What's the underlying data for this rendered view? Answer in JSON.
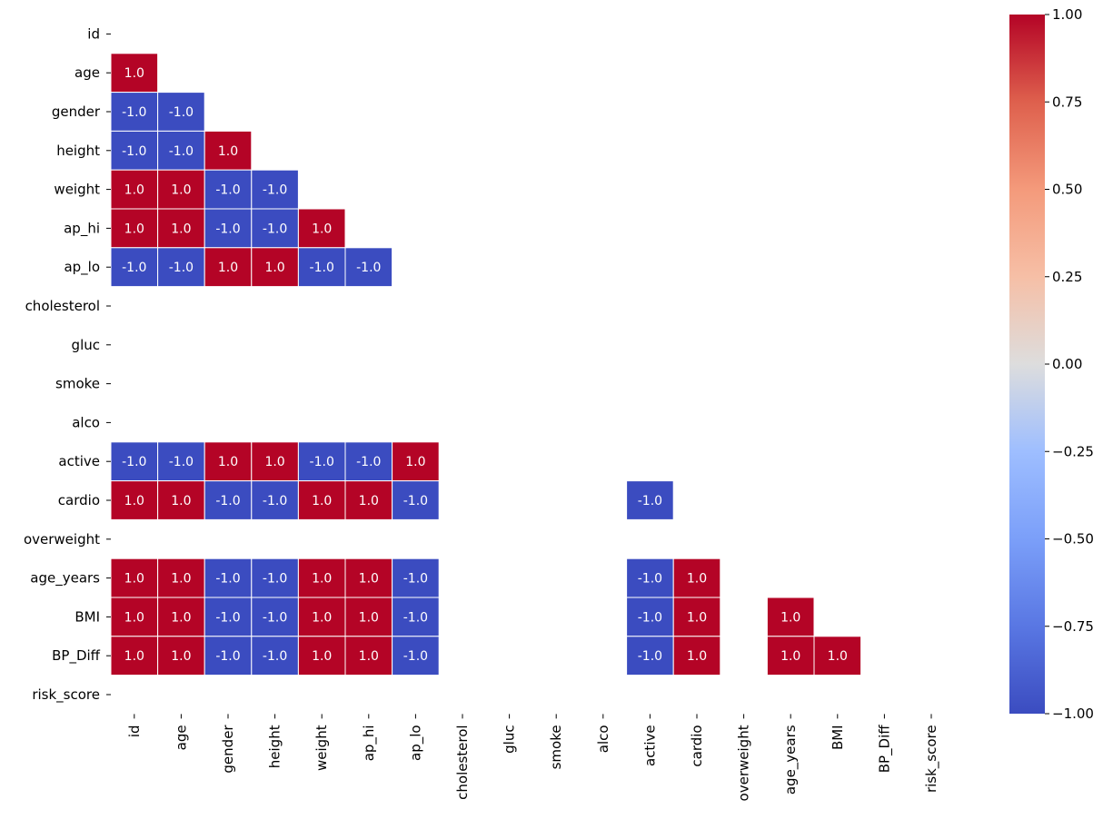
{
  "chart_data": {
    "type": "heatmap",
    "title": "",
    "xlabel": "",
    "ylabel": "",
    "colormap": "coolwarm",
    "colors": {
      "low": "#3b4cc0",
      "mid": "#dddddd",
      "high": "#b40426",
      "cell_border": "#ffffff"
    },
    "vmin": -1.0,
    "vmax": 1.0,
    "annotation_format": "0.1f",
    "mask": "upper triangle incl. diagonal, plus NaN cells",
    "labels": [
      "id",
      "age",
      "gender",
      "height",
      "weight",
      "ap_hi",
      "ap_lo",
      "cholesterol",
      "gluc",
      "smoke",
      "alco",
      "active",
      "cardio",
      "overweight",
      "age_years",
      "BMI",
      "BP_Diff",
      "risk_score"
    ],
    "values": [
      [
        null,
        null,
        null,
        null,
        null,
        null,
        null,
        null,
        null,
        null,
        null,
        null,
        null,
        null,
        null,
        null,
        null,
        null
      ],
      [
        1.0,
        null,
        null,
        null,
        null,
        null,
        null,
        null,
        null,
        null,
        null,
        null,
        null,
        null,
        null,
        null,
        null,
        null
      ],
      [
        -1.0,
        -1.0,
        null,
        null,
        null,
        null,
        null,
        null,
        null,
        null,
        null,
        null,
        null,
        null,
        null,
        null,
        null,
        null
      ],
      [
        -1.0,
        -1.0,
        1.0,
        null,
        null,
        null,
        null,
        null,
        null,
        null,
        null,
        null,
        null,
        null,
        null,
        null,
        null,
        null
      ],
      [
        1.0,
        1.0,
        -1.0,
        -1.0,
        null,
        null,
        null,
        null,
        null,
        null,
        null,
        null,
        null,
        null,
        null,
        null,
        null,
        null
      ],
      [
        1.0,
        1.0,
        -1.0,
        -1.0,
        1.0,
        null,
        null,
        null,
        null,
        null,
        null,
        null,
        null,
        null,
        null,
        null,
        null,
        null
      ],
      [
        -1.0,
        -1.0,
        1.0,
        1.0,
        -1.0,
        -1.0,
        null,
        null,
        null,
        null,
        null,
        null,
        null,
        null,
        null,
        null,
        null,
        null
      ],
      [
        null,
        null,
        null,
        null,
        null,
        null,
        null,
        null,
        null,
        null,
        null,
        null,
        null,
        null,
        null,
        null,
        null,
        null
      ],
      [
        null,
        null,
        null,
        null,
        null,
        null,
        null,
        null,
        null,
        null,
        null,
        null,
        null,
        null,
        null,
        null,
        null,
        null
      ],
      [
        null,
        null,
        null,
        null,
        null,
        null,
        null,
        null,
        null,
        null,
        null,
        null,
        null,
        null,
        null,
        null,
        null,
        null
      ],
      [
        null,
        null,
        null,
        null,
        null,
        null,
        null,
        null,
        null,
        null,
        null,
        null,
        null,
        null,
        null,
        null,
        null,
        null
      ],
      [
        -1.0,
        -1.0,
        1.0,
        1.0,
        -1.0,
        -1.0,
        1.0,
        null,
        null,
        null,
        null,
        null,
        null,
        null,
        null,
        null,
        null,
        null
      ],
      [
        1.0,
        1.0,
        -1.0,
        -1.0,
        1.0,
        1.0,
        -1.0,
        null,
        null,
        null,
        null,
        -1.0,
        null,
        null,
        null,
        null,
        null,
        null
      ],
      [
        null,
        null,
        null,
        null,
        null,
        null,
        null,
        null,
        null,
        null,
        null,
        null,
        null,
        null,
        null,
        null,
        null,
        null
      ],
      [
        1.0,
        1.0,
        -1.0,
        -1.0,
        1.0,
        1.0,
        -1.0,
        null,
        null,
        null,
        null,
        -1.0,
        1.0,
        null,
        null,
        null,
        null,
        null
      ],
      [
        1.0,
        1.0,
        -1.0,
        -1.0,
        1.0,
        1.0,
        -1.0,
        null,
        null,
        null,
        null,
        -1.0,
        1.0,
        null,
        1.0,
        null,
        null,
        null
      ],
      [
        1.0,
        1.0,
        -1.0,
        -1.0,
        1.0,
        1.0,
        -1.0,
        null,
        null,
        null,
        null,
        -1.0,
        1.0,
        null,
        1.0,
        1.0,
        null,
        null
      ],
      [
        null,
        null,
        null,
        null,
        null,
        null,
        null,
        null,
        null,
        null,
        null,
        null,
        null,
        null,
        null,
        null,
        null,
        null
      ]
    ],
    "colorbar": {
      "ticks": [
        1.0,
        0.75,
        0.5,
        0.25,
        0.0,
        -0.25,
        -0.5,
        -0.75,
        -1.0
      ],
      "tick_labels": [
        "1.00",
        "0.75",
        "0.50",
        "0.25",
        "0.00",
        "−0.25",
        "−0.50",
        "−0.75",
        "−1.00"
      ]
    }
  }
}
